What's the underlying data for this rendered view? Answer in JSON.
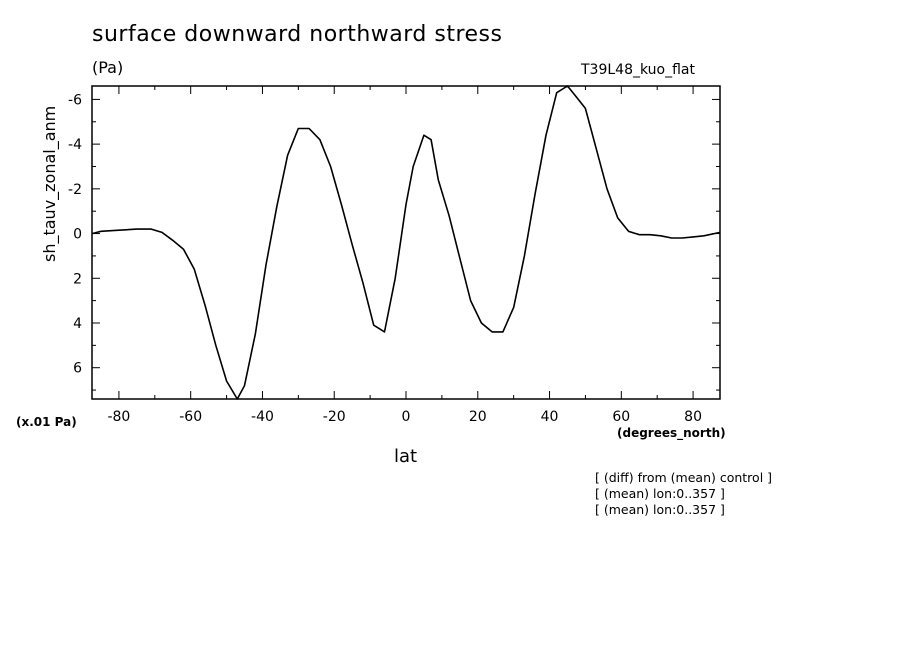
{
  "title": "surface downward northward stress",
  "units": "(Pa)",
  "case_label": "T39L48_kuo_flat",
  "scale_label": "(x.01 Pa)",
  "x_units": "(degrees_north)",
  "notes": [
    "[ (diff) from (mean) control ]",
    "[ (mean) lon:0..357 ]",
    "[ (mean) lon:0..357 ]"
  ],
  "chart_data": {
    "type": "line",
    "title": "surface downward northward stress",
    "xlabel": "lat",
    "ylabel": "sh_tauv_zonal_anm",
    "xlim": [
      -87.5,
      87.5
    ],
    "ylim": [
      7.4,
      -6.6
    ],
    "y_inverted": true,
    "xticks": [
      -80,
      -60,
      -40,
      -20,
      0,
      20,
      40,
      60,
      80
    ],
    "yticks": [
      -6,
      -4,
      -2,
      0,
      2,
      4,
      6
    ],
    "ytick_labels": [
      "-6",
      "-4",
      "-2",
      "0",
      "2",
      "4",
      "6"
    ],
    "xtick_labels": [
      "-80",
      "-60",
      "-40",
      "-20",
      "0",
      "20",
      "40",
      "60",
      "80"
    ],
    "grid": false,
    "series": [
      {
        "x": [
          -87.5,
          -85,
          -80,
          -75,
          -71,
          -68,
          -65,
          -62,
          -59,
          -56,
          -53,
          -50,
          -47,
          -45,
          -42,
          -39,
          -36,
          -33,
          -30,
          -27,
          -24,
          -21,
          -18,
          -15,
          -12,
          -9,
          -6,
          -3,
          0,
          2,
          5,
          7,
          9,
          12,
          15,
          18,
          21,
          24,
          27,
          30,
          33,
          36,
          39,
          42,
          45,
          47,
          50,
          53,
          56,
          59,
          62,
          65,
          68,
          71,
          74,
          77,
          80,
          83,
          87.5
        ],
        "y": [
          0,
          -0.1,
          -0.15,
          -0.2,
          -0.2,
          -0.05,
          0.3,
          0.7,
          1.6,
          3.2,
          5,
          6.6,
          7.4,
          6.8,
          4.5,
          1.4,
          -1.2,
          -3.5,
          -4.7,
          -4.7,
          -4.2,
          -3,
          -1.3,
          0.5,
          2.2,
          4.1,
          4.4,
          2,
          -1.3,
          -3,
          -4.4,
          -4.2,
          -2.4,
          -0.8,
          1.1,
          3,
          4,
          4.4,
          4.4,
          3.3,
          1,
          -1.8,
          -4.4,
          -6.3,
          -6.6,
          -6.2,
          -5.6,
          -3.8,
          -2,
          -0.7,
          -0.1,
          0.05,
          0.05,
          0.1,
          0.2,
          0.2,
          0.15,
          0.1,
          -0.05
        ]
      }
    ]
  }
}
